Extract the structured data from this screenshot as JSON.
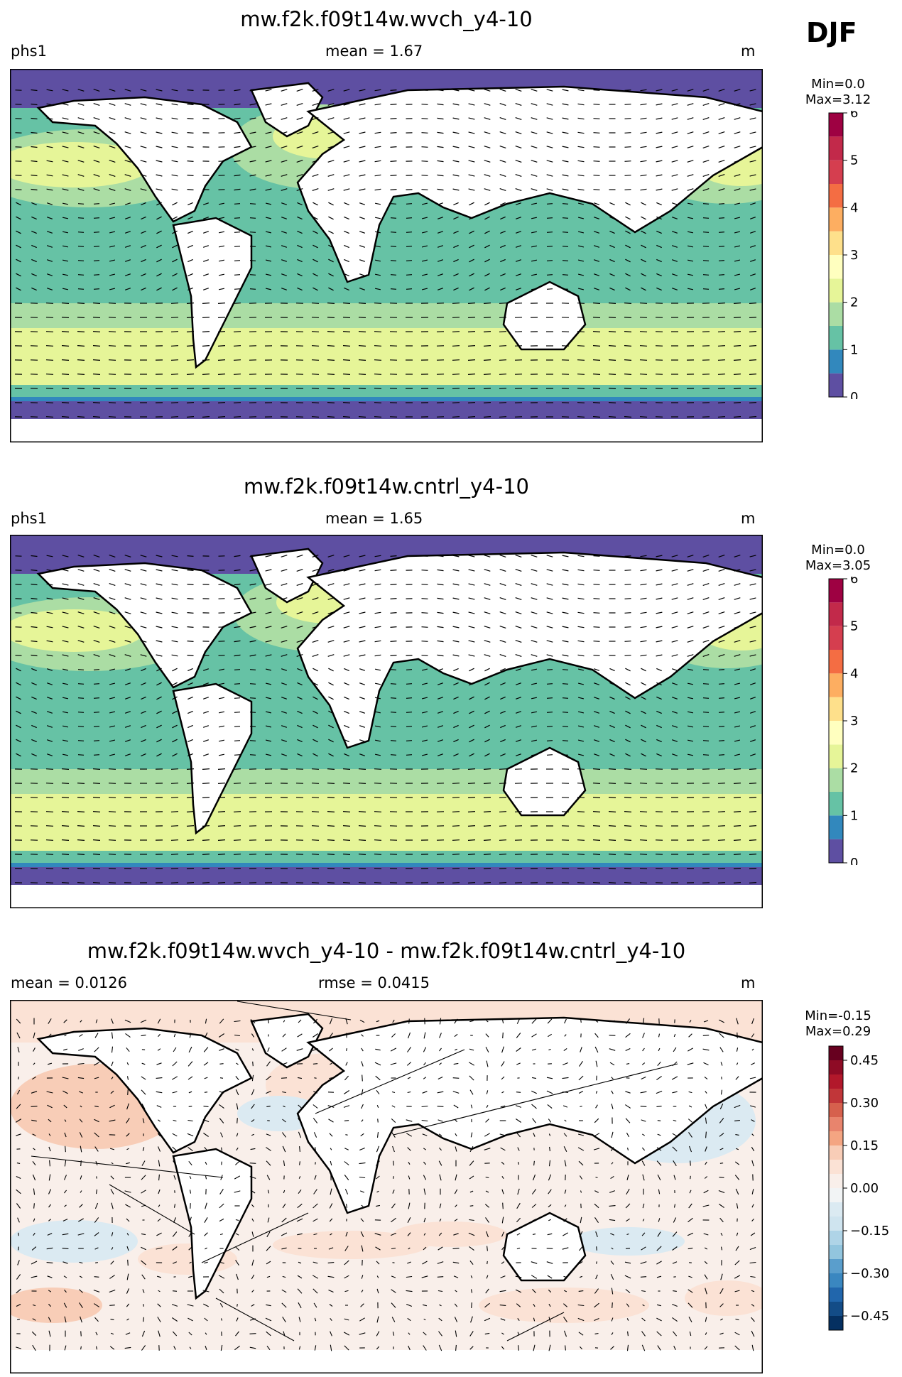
{
  "season": "DJF",
  "panels": [
    {
      "title": "mw.f2k.f09t14w.wvch_y4-10",
      "left": "phs1",
      "center": "mean = 1.67",
      "right": "m",
      "cb_min": "Min=0.0",
      "cb_max": "Max=3.12"
    },
    {
      "title": "mw.f2k.f09t14w.cntrl_y4-10",
      "left": "phs1",
      "center": "mean = 1.65",
      "right": "m",
      "cb_min": "Min=0.0",
      "cb_max": "Max=3.05"
    },
    {
      "title": "mw.f2k.f09t14w.wvch_y4-10 - mw.f2k.f09t14w.cntrl_y4-10",
      "left": "mean = 0.0126",
      "center": "rmse = 0.0415",
      "right": "m",
      "cb_min": "Min=-0.15",
      "cb_max": "Max=0.29"
    }
  ],
  "chart_data": [
    {
      "type": "heatmap",
      "title": "mw.f2k.f09t14w.wvch_y4-10",
      "variable": "phs1",
      "units": "m",
      "mean": 1.67,
      "min": 0.0,
      "max": 3.12,
      "colorbar_ticks": [
        "0",
        "1",
        "2",
        "3",
        "4",
        "5",
        "6"
      ],
      "colorbar_levels": [
        0,
        0.5,
        1,
        1.5,
        2,
        2.5,
        3,
        3.5,
        4,
        4.5,
        5,
        5.5,
        6
      ],
      "colormap": [
        "#5e4fa2",
        "#3288bd",
        "#66c2a5",
        "#abdda4",
        "#e6f598",
        "#ffffbf",
        "#fee08b",
        "#fdae61",
        "#f46d43",
        "#d53e4f",
        "#c2294a",
        "#9e0142"
      ],
      "overlay": "wave direction vectors"
    },
    {
      "type": "heatmap",
      "title": "mw.f2k.f09t14w.cntrl_y4-10",
      "variable": "phs1",
      "units": "m",
      "mean": 1.65,
      "min": 0.0,
      "max": 3.05,
      "colorbar_ticks": [
        "0",
        "1",
        "2",
        "3",
        "4",
        "5",
        "6"
      ],
      "colorbar_levels": [
        0,
        0.5,
        1,
        1.5,
        2,
        2.5,
        3,
        3.5,
        4,
        4.5,
        5,
        5.5,
        6
      ],
      "colormap": [
        "#5e4fa2",
        "#3288bd",
        "#66c2a5",
        "#abdda4",
        "#e6f598",
        "#ffffbf",
        "#fee08b",
        "#fdae61",
        "#f46d43",
        "#d53e4f",
        "#c2294a",
        "#9e0142"
      ],
      "overlay": "wave direction vectors"
    },
    {
      "type": "heatmap",
      "title": "mw.f2k.f09t14w.wvch_y4-10 - mw.f2k.f09t14w.cntrl_y4-10",
      "units": "m",
      "mean": 0.0126,
      "rmse": 0.0415,
      "min": -0.15,
      "max": 0.29,
      "colorbar_ticks": [
        "−0.45",
        "−0.30",
        "−0.15",
        "0.00",
        "0.15",
        "0.30",
        "0.45"
      ],
      "colorbar_levels": [
        -0.5,
        -0.45,
        -0.4,
        -0.35,
        -0.3,
        -0.25,
        -0.2,
        -0.15,
        -0.1,
        -0.05,
        0,
        0.05,
        0.1,
        0.15,
        0.2,
        0.25,
        0.3,
        0.35,
        0.4,
        0.45,
        0.5
      ],
      "colormap": [
        "#053061",
        "#134c87",
        "#2166ac",
        "#3a87c0",
        "#5a9ecc",
        "#92c5de",
        "#afd4e7",
        "#cfe4ef",
        "#dbeaf2",
        "#f2f4f5",
        "#f9efea",
        "#fbe2d5",
        "#f8cdb7",
        "#f4a582",
        "#e8846d",
        "#d6604d",
        "#c13639",
        "#b2182b",
        "#8e0b25",
        "#67001f"
      ],
      "overlay": "difference vectors"
    }
  ]
}
